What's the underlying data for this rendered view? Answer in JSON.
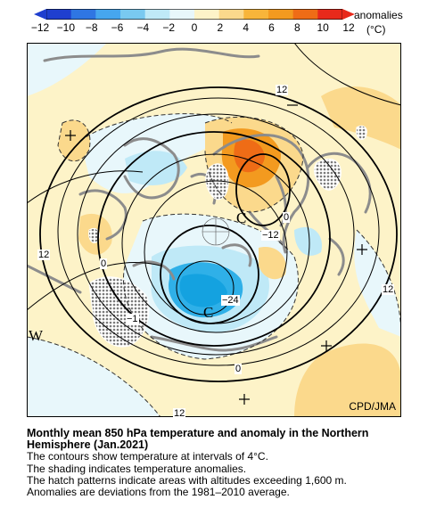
{
  "legend": {
    "title": "anomalies",
    "unit": "(°C)",
    "ticks": [
      "−12",
      "−10",
      "−8",
      "−6",
      "−4",
      "−2",
      "0",
      "2",
      "4",
      "6",
      "8",
      "10",
      "12"
    ],
    "colors": [
      "#1f3fcf",
      "#2f76e3",
      "#46a6ef",
      "#79c9f0",
      "#bfe9f7",
      "#e8f7fb",
      "#fdf3c8",
      "#fbd98c",
      "#f8b53a",
      "#f39a1f",
      "#ef6c16",
      "#e8291b"
    ]
  },
  "map": {
    "credit": "CPD/JMA",
    "contour_labels": [
      "12",
      "12",
      "12",
      "12",
      "0",
      "0",
      "0",
      "−12",
      "−24",
      "−1"
    ],
    "centers": [
      "C",
      "C"
    ],
    "edge_labels": [
      "W"
    ],
    "colors": {
      "cold_core": "#2fb0e8",
      "cold": "#bfe9f7",
      "cool": "#e8f7fb",
      "warm": "#fbd98c",
      "hot": "#f39a1f",
      "very_hot": "#ef6c16",
      "background_warm": "#fdf3c8",
      "coastline": "#8c8c8c"
    }
  },
  "caption": {
    "title_line1": "Monthly mean 850 hPa temperature and anomaly in the Northern",
    "title_line2": "Hemisphere (Jan.2021)",
    "lines": [
      "The contours show temperature at intervals of 4°C.",
      "The shading indicates temperature anomalies.",
      "The hatch patterns indicate areas with altitudes exceeding 1,600 m.",
      "Anomalies are deviations from the 1981–2010 average."
    ]
  }
}
